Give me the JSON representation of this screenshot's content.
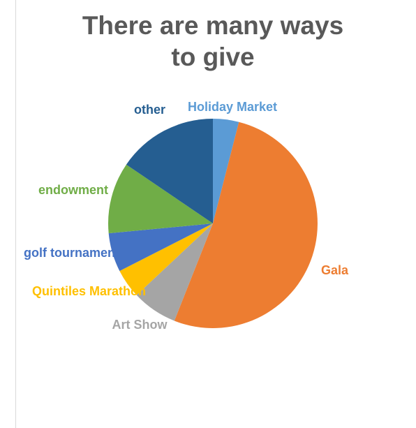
{
  "chart_data": {
    "type": "pie",
    "title": "There are many ways to give",
    "slices": [
      {
        "label": "Holiday Market",
        "value": 4,
        "color": "#5b9bd5"
      },
      {
        "label": "Gala",
        "value": 52,
        "color": "#ed7d31"
      },
      {
        "label": "Art Show",
        "value": 7,
        "color": "#a5a5a5"
      },
      {
        "label": "Quintiles Marathon",
        "value": 4.5,
        "color": "#ffc000"
      },
      {
        "label": "golf tournament",
        "value": 6,
        "color": "#4472c4"
      },
      {
        "label": "endowment",
        "value": 11,
        "color": "#70ad47"
      },
      {
        "label": "other",
        "value": 15.5,
        "color": "#255e91"
      }
    ],
    "legend": "none",
    "data_labels": "category name, outside"
  }
}
